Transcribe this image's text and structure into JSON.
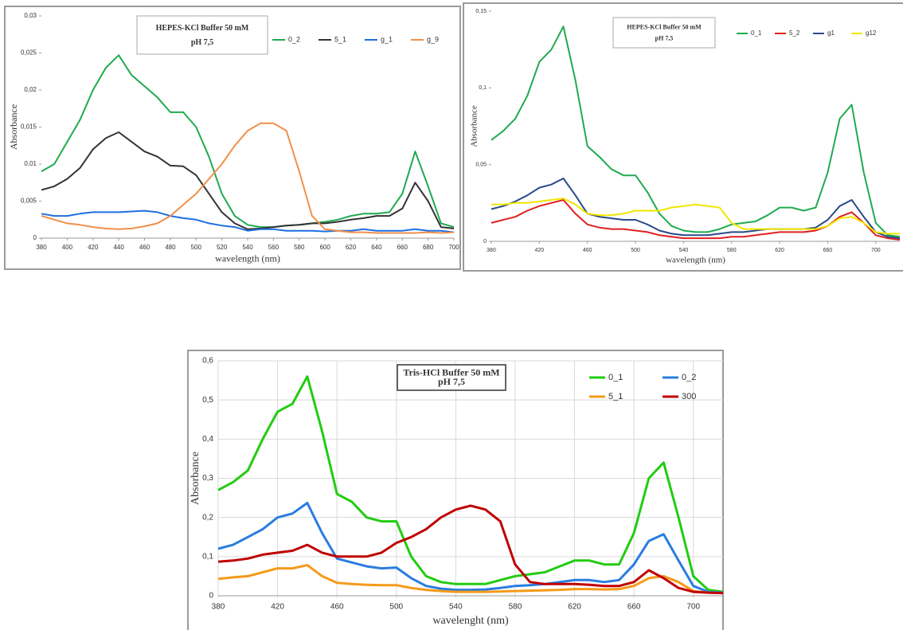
{
  "chart_data": [
    {
      "type": "line",
      "title": "HEPES-KCl Buffer 50 mM",
      "subtitle": "pH 7,5",
      "x_label": "wavelength (nm)",
      "y_label": "Absorbance",
      "legend": "top-right",
      "grid": false,
      "xlim": [
        380,
        700
      ],
      "xticks": [
        380,
        400,
        420,
        440,
        460,
        480,
        500,
        520,
        540,
        560,
        580,
        600,
        620,
        640,
        660,
        680,
        700
      ],
      "ylim": [
        0,
        0.03
      ],
      "yticks": [
        0,
        {
          "value": 0.005,
          "label": "0,005"
        },
        {
          "value": 0.01,
          "label": "0,01"
        },
        {
          "value": 0.015,
          "label": "0,015"
        },
        {
          "value": 0.02,
          "label": "0,02"
        },
        {
          "value": 0.025,
          "label": "0,025"
        },
        {
          "value": 0.03,
          "label": "0,03"
        }
      ],
      "x": [
        380,
        390,
        400,
        410,
        420,
        430,
        440,
        450,
        460,
        470,
        480,
        490,
        500,
        510,
        520,
        530,
        540,
        550,
        560,
        570,
        580,
        590,
        600,
        610,
        620,
        630,
        640,
        650,
        660,
        670,
        680,
        690,
        700
      ],
      "series": [
        {
          "name": "0_2",
          "color": "#1faa4f",
          "values": [
            0.009,
            0.01,
            0.013,
            0.016,
            0.02,
            0.023,
            0.0247,
            0.022,
            0.0205,
            0.019,
            0.017,
            0.017,
            0.015,
            0.011,
            0.006,
            0.003,
            0.0018,
            0.0015,
            0.0015,
            0.0017,
            0.0018,
            0.002,
            0.0022,
            0.0025,
            0.003,
            0.0033,
            0.0033,
            0.0035,
            0.006,
            0.0117,
            0.007,
            0.002,
            0.0015
          ]
        },
        {
          "name": "5_1",
          "color": "#333333",
          "values": [
            0.0065,
            0.007,
            0.008,
            0.0095,
            0.012,
            0.0135,
            0.0143,
            0.013,
            0.0117,
            0.011,
            0.0098,
            0.0097,
            0.0085,
            0.006,
            0.0035,
            0.002,
            0.0012,
            0.0013,
            0.0015,
            0.0017,
            0.0018,
            0.002,
            0.002,
            0.0022,
            0.0025,
            0.0027,
            0.003,
            0.003,
            0.004,
            0.0075,
            0.005,
            0.0015,
            0.0013
          ]
        },
        {
          "name": "g_1",
          "color": "#1f6fe0",
          "values": [
            0.0033,
            0.003,
            0.003,
            0.0033,
            0.0035,
            0.0035,
            0.0035,
            0.0036,
            0.0037,
            0.0035,
            0.003,
            0.0027,
            0.0025,
            0.002,
            0.0017,
            0.0015,
            0.001,
            0.0012,
            0.0012,
            0.001,
            0.001,
            0.001,
            0.0009,
            0.001,
            0.001,
            0.0012,
            0.001,
            0.001,
            0.001,
            0.0012,
            0.001,
            0.001,
            0.0008
          ]
        },
        {
          "name": "g_9",
          "color": "#f0904a",
          "values": [
            0.003,
            0.0025,
            0.002,
            0.0018,
            0.0015,
            0.0013,
            0.0012,
            0.0013,
            0.0016,
            0.002,
            0.003,
            0.0045,
            0.006,
            0.008,
            0.01,
            0.0125,
            0.0145,
            0.0155,
            0.0155,
            0.0145,
            0.009,
            0.003,
            0.0012,
            0.001,
            0.0008,
            0.0008,
            0.0007,
            0.0007,
            0.0007,
            0.0007,
            0.0008,
            0.0007,
            0.0008
          ]
        }
      ]
    },
    {
      "type": "line",
      "title": "HEPES-KCl Buffer 50 mM",
      "subtitle": "pH 7,5",
      "x_label": "wavelength (nm)",
      "y_label": "Absorbance",
      "legend": "top-right",
      "grid": false,
      "xlim": [
        380,
        720
      ],
      "xticks": [
        380,
        420,
        460,
        500,
        540,
        580,
        620,
        660,
        700
      ],
      "ylim": [
        0,
        0.15
      ],
      "yticks": [
        0,
        {
          "value": 0.05,
          "label": "0,05"
        },
        {
          "value": 0.1,
          "label": "0,1"
        },
        {
          "value": 0.15,
          "label": "0,15"
        }
      ],
      "x": [
        380,
        390,
        400,
        410,
        420,
        430,
        440,
        450,
        460,
        470,
        480,
        490,
        500,
        510,
        520,
        530,
        540,
        550,
        560,
        570,
        580,
        590,
        600,
        610,
        620,
        630,
        640,
        650,
        660,
        670,
        680,
        690,
        700,
        710,
        720
      ],
      "series": [
        {
          "name": "0_1",
          "color": "#1faa4f",
          "values": [
            0.066,
            0.072,
            0.08,
            0.095,
            0.117,
            0.125,
            0.14,
            0.105,
            0.062,
            0.055,
            0.047,
            0.043,
            0.043,
            0.032,
            0.018,
            0.01,
            0.007,
            0.006,
            0.006,
            0.008,
            0.011,
            0.012,
            0.013,
            0.017,
            0.022,
            0.022,
            0.02,
            0.022,
            0.045,
            0.08,
            0.089,
            0.045,
            0.012,
            0.004,
            0.003
          ]
        },
        {
          "name": "5_2",
          "color": "#e02020",
          "values": [
            0.012,
            0.014,
            0.016,
            0.02,
            0.023,
            0.025,
            0.027,
            0.018,
            0.011,
            0.009,
            0.008,
            0.008,
            0.007,
            0.006,
            0.004,
            0.003,
            0.002,
            0.002,
            0.002,
            0.002,
            0.003,
            0.003,
            0.004,
            0.005,
            0.006,
            0.006,
            0.006,
            0.007,
            0.01,
            0.016,
            0.019,
            0.012,
            0.004,
            0.002,
            0.001
          ]
        },
        {
          "name": "g1",
          "color": "#2a4a8a",
          "values": [
            0.021,
            0.023,
            0.026,
            0.03,
            0.035,
            0.037,
            0.041,
            0.03,
            0.018,
            0.016,
            0.015,
            0.014,
            0.014,
            0.011,
            0.007,
            0.005,
            0.004,
            0.004,
            0.004,
            0.005,
            0.006,
            0.006,
            0.007,
            0.008,
            0.008,
            0.008,
            0.008,
            0.009,
            0.014,
            0.023,
            0.027,
            0.016,
            0.006,
            0.003,
            0.002
          ]
        },
        {
          "name": "g12",
          "color": "#f2e600",
          "values": [
            0.024,
            0.024,
            0.025,
            0.025,
            0.026,
            0.027,
            0.028,
            0.024,
            0.018,
            0.017,
            0.017,
            0.018,
            0.02,
            0.02,
            0.02,
            0.022,
            0.023,
            0.024,
            0.023,
            0.022,
            0.012,
            0.008,
            0.008,
            0.008,
            0.008,
            0.008,
            0.008,
            0.008,
            0.01,
            0.015,
            0.016,
            0.012,
            0.006,
            0.005,
            0.005
          ]
        }
      ]
    },
    {
      "type": "line",
      "title": "Tris-HCl Buffer 50 mM",
      "subtitle": "pH 7,5",
      "x_label": "wavelenght (nm)",
      "y_label": "Absorbance",
      "legend": "top-right",
      "grid": true,
      "xlim": [
        380,
        720
      ],
      "xticks": [
        380,
        420,
        460,
        500,
        540,
        580,
        620,
        660,
        700
      ],
      "ylim": [
        0,
        0.6
      ],
      "yticks": [
        0,
        {
          "value": 0.1,
          "label": "0,1"
        },
        {
          "value": 0.2,
          "label": "0,2"
        },
        {
          "value": 0.3,
          "label": "0,3"
        },
        {
          "value": 0.4,
          "label": "0,4"
        },
        {
          "value": 0.5,
          "label": "0,5"
        },
        {
          "value": 0.6,
          "label": "0,6"
        }
      ],
      "x": [
        380,
        390,
        400,
        410,
        420,
        430,
        440,
        450,
        460,
        470,
        480,
        490,
        500,
        510,
        520,
        530,
        540,
        550,
        560,
        570,
        580,
        590,
        600,
        610,
        620,
        630,
        640,
        650,
        660,
        670,
        680,
        690,
        700,
        710,
        720
      ],
      "series": [
        {
          "name": "0_1",
          "color": "#22cc11",
          "values": [
            0.27,
            0.29,
            0.32,
            0.4,
            0.47,
            0.49,
            0.56,
            0.42,
            0.26,
            0.24,
            0.2,
            0.19,
            0.19,
            0.1,
            0.05,
            0.035,
            0.03,
            0.03,
            0.03,
            0.04,
            0.05,
            0.055,
            0.06,
            0.075,
            0.09,
            0.09,
            0.08,
            0.08,
            0.16,
            0.3,
            0.34,
            0.2,
            0.05,
            0.015,
            0.01
          ]
        },
        {
          "name": "0_2",
          "color": "#2a7de0",
          "values": [
            0.12,
            0.13,
            0.15,
            0.17,
            0.2,
            0.21,
            0.237,
            0.16,
            0.095,
            0.085,
            0.075,
            0.07,
            0.072,
            0.045,
            0.025,
            0.018,
            0.015,
            0.015,
            0.016,
            0.02,
            0.025,
            0.027,
            0.03,
            0.035,
            0.04,
            0.04,
            0.035,
            0.04,
            0.08,
            0.14,
            0.157,
            0.09,
            0.025,
            0.01,
            0.008
          ]
        },
        {
          "name": "5_1",
          "color": "#f59a1a",
          "values": [
            0.043,
            0.047,
            0.05,
            0.06,
            0.07,
            0.07,
            0.078,
            0.05,
            0.033,
            0.03,
            0.028,
            0.027,
            0.027,
            0.02,
            0.015,
            0.012,
            0.01,
            0.01,
            0.01,
            0.011,
            0.012,
            0.013,
            0.014,
            0.015,
            0.017,
            0.017,
            0.016,
            0.017,
            0.025,
            0.045,
            0.05,
            0.035,
            0.012,
            0.008,
            0.007
          ]
        },
        {
          "name": "300",
          "color": "#c00000",
          "values": [
            0.087,
            0.09,
            0.095,
            0.105,
            0.11,
            0.115,
            0.13,
            0.11,
            0.1,
            0.1,
            0.1,
            0.11,
            0.135,
            0.15,
            0.17,
            0.2,
            0.22,
            0.23,
            0.22,
            0.19,
            0.08,
            0.035,
            0.03,
            0.03,
            0.03,
            0.028,
            0.025,
            0.025,
            0.035,
            0.065,
            0.045,
            0.02,
            0.01,
            0.008,
            0.007
          ]
        }
      ]
    }
  ]
}
